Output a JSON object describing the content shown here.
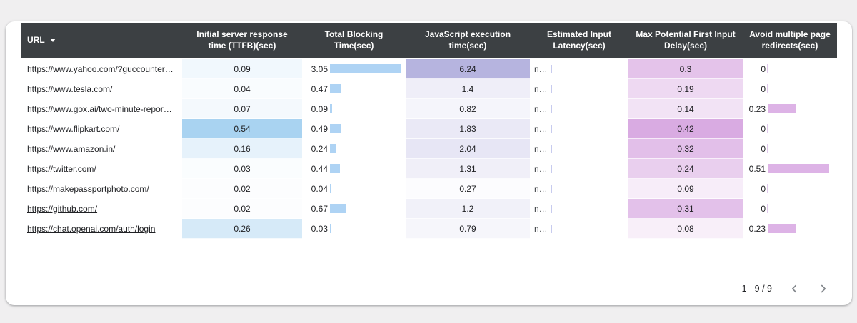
{
  "chart_data": {
    "type": "table",
    "columns": [
      {
        "label": "URL",
        "sortable": true,
        "sort_direction": "desc"
      },
      {
        "label": "Initial server response time (TTFB)(sec)",
        "style": "heatmap-blue"
      },
      {
        "label": "Total Blocking Time(sec)",
        "style": "bar-blue"
      },
      {
        "label": "JavaScript execution time(sec)",
        "style": "heatmap-purple"
      },
      {
        "label": "Estimated Input Latency(sec)",
        "style": "text-truncated"
      },
      {
        "label": "Max Potential First Input Delay(sec)",
        "style": "heatmap-pink"
      },
      {
        "label": "Avoid multiple page redirects(sec)",
        "style": "bar-pink"
      }
    ],
    "rows": [
      {
        "url": "https://www.yahoo.com/?guccounter…",
        "ttfb": "0.09",
        "tbt": "3.05",
        "js_exec": "6.24",
        "input_latency": "n…",
        "max_fid": "0.3",
        "redirects": "0"
      },
      {
        "url": "https://www.tesla.com/",
        "ttfb": "0.04",
        "tbt": "0.47",
        "js_exec": "1.4",
        "input_latency": "n…",
        "max_fid": "0.19",
        "redirects": "0"
      },
      {
        "url": "https://www.gox.ai/two-minute-repor…",
        "ttfb": "0.07",
        "tbt": "0.09",
        "js_exec": "0.82",
        "input_latency": "n…",
        "max_fid": "0.14",
        "redirects": "0.23"
      },
      {
        "url": "https://www.flipkart.com/",
        "ttfb": "0.54",
        "tbt": "0.49",
        "js_exec": "1.83",
        "input_latency": "n…",
        "max_fid": "0.42",
        "redirects": "0"
      },
      {
        "url": "https://www.amazon.in/",
        "ttfb": "0.16",
        "tbt": "0.24",
        "js_exec": "2.04",
        "input_latency": "n…",
        "max_fid": "0.32",
        "redirects": "0"
      },
      {
        "url": "https://twitter.com/",
        "ttfb": "0.03",
        "tbt": "0.44",
        "js_exec": "1.31",
        "input_latency": "n…",
        "max_fid": "0.24",
        "redirects": "0.51"
      },
      {
        "url": "https://makepassportphoto.com/",
        "ttfb": "0.02",
        "tbt": "0.04",
        "js_exec": "0.27",
        "input_latency": "n…",
        "max_fid": "0.09",
        "redirects": "0"
      },
      {
        "url": "https://github.com/",
        "ttfb": "0.02",
        "tbt": "0.67",
        "js_exec": "1.2",
        "input_latency": "n…",
        "max_fid": "0.31",
        "redirects": "0"
      },
      {
        "url": "https://chat.openai.com/auth/login",
        "ttfb": "0.26",
        "tbt": "0.03",
        "js_exec": "0.79",
        "input_latency": "n…",
        "max_fid": "0.08",
        "redirects": "0.23"
      }
    ]
  },
  "pagination": {
    "range_label": "1 - 9 / 9"
  },
  "colors": {
    "header_bg": "#3c4043",
    "header_text": "#ffffff",
    "page_bg": "#f0eff0",
    "card_bg": "#ffffff",
    "ttfb_heat_accent": "#a9d3f1",
    "js_heat_accent": "#b6b4df",
    "fid_heat_accent": "#d9abe2",
    "tbt_bar": "#aed3f4",
    "redirects_bar": "#ddb3e6",
    "eil_tick": "#c7cbee",
    "zero_tick": "#e0c9ec",
    "link_text": "#202124",
    "chevron": "#82868b"
  }
}
